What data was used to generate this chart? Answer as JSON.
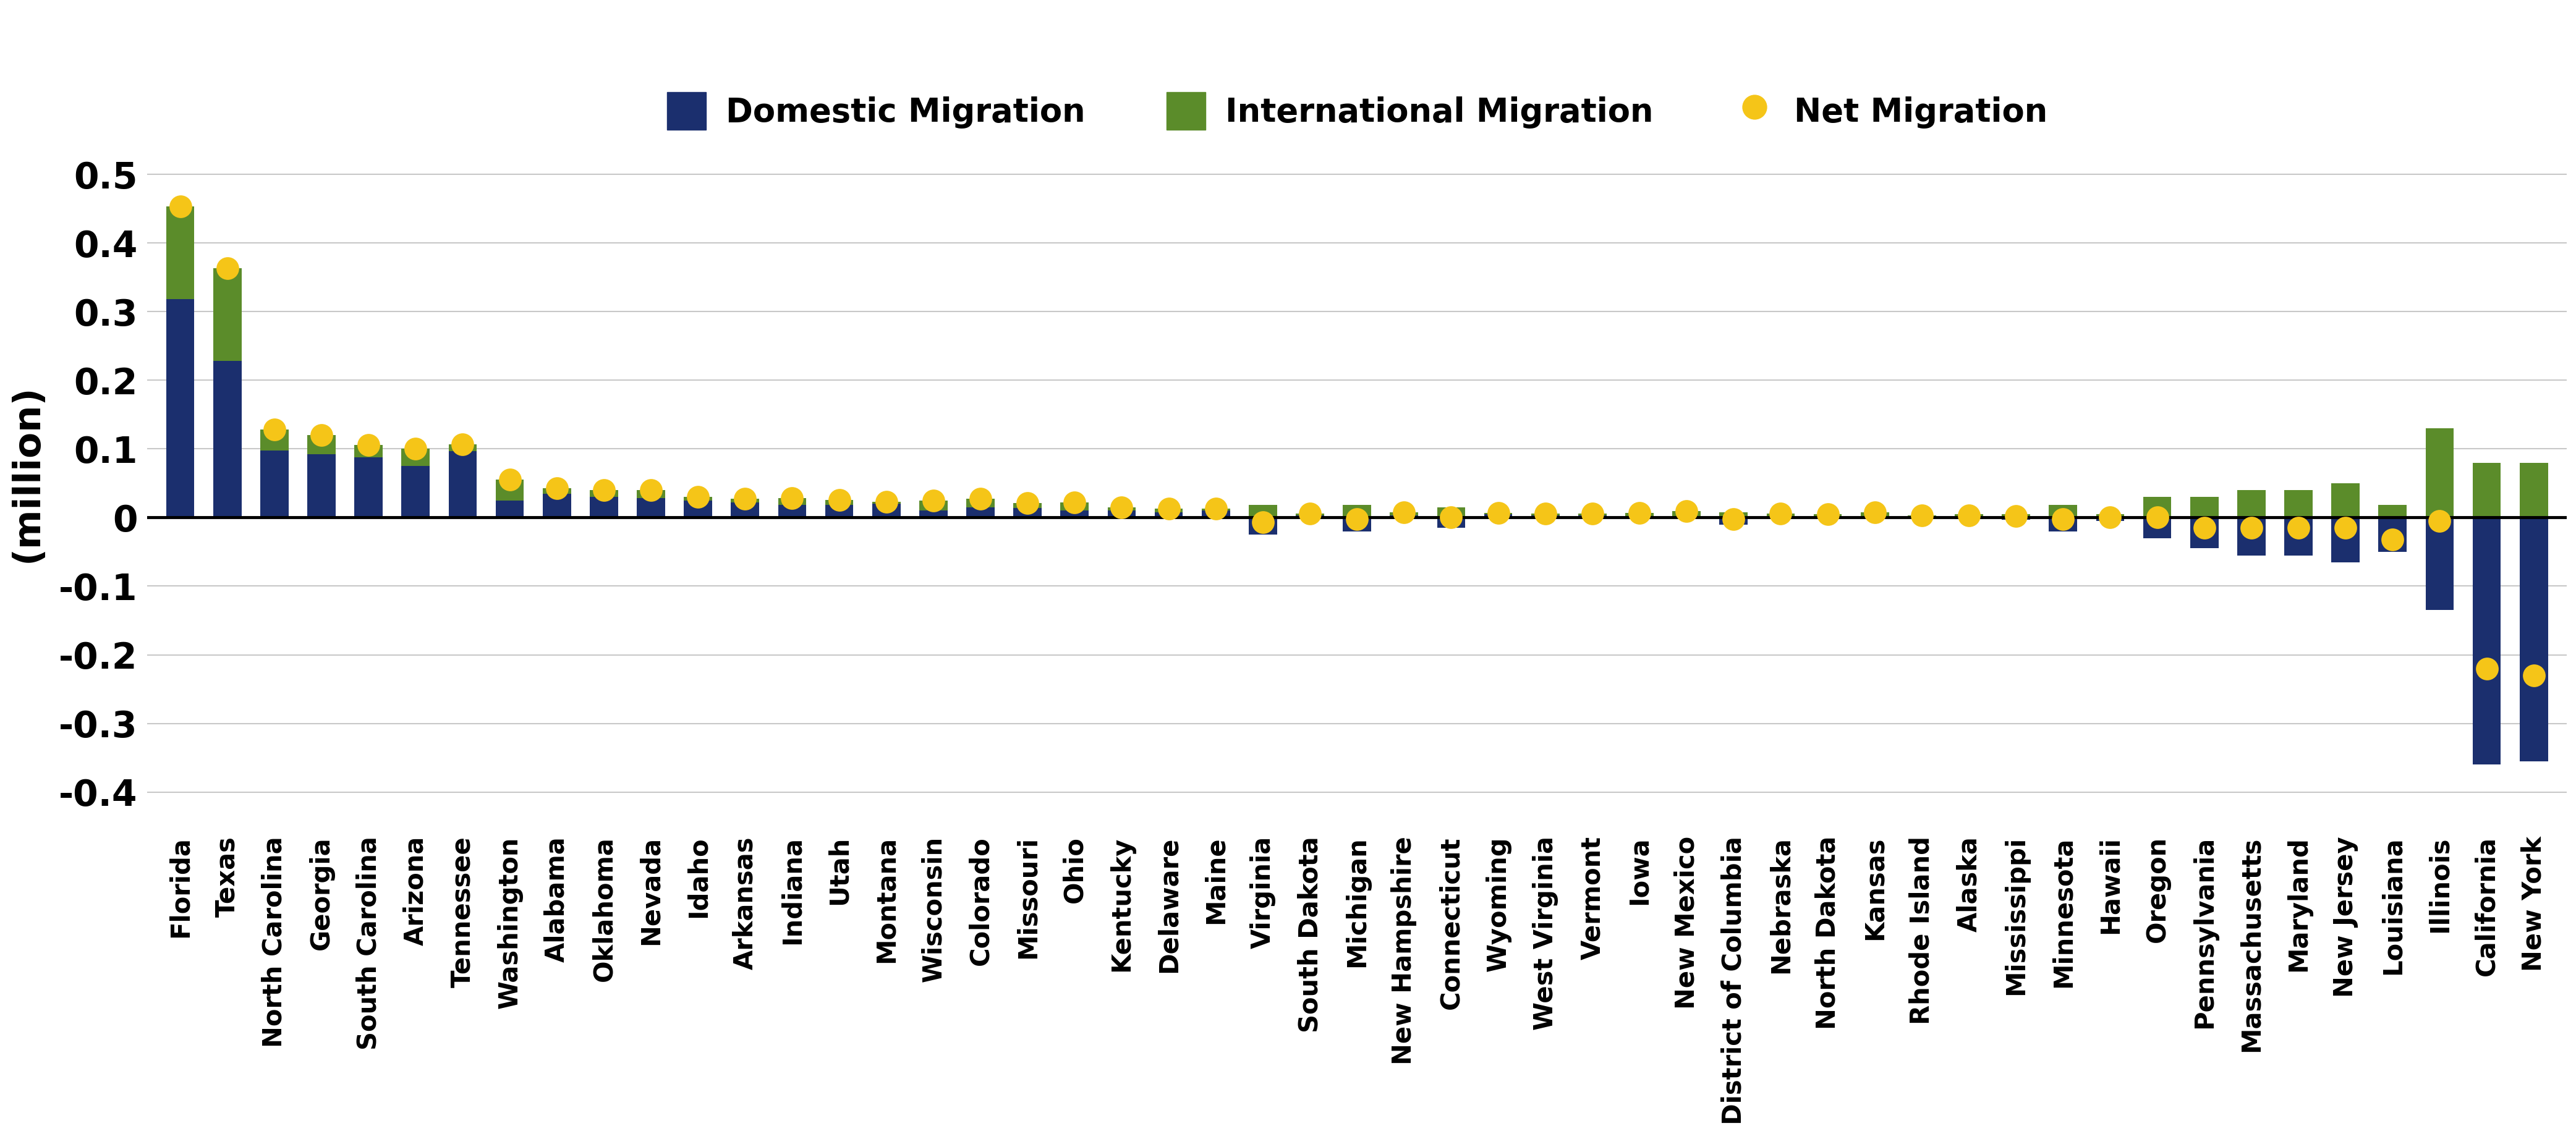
{
  "states": [
    "Florida",
    "Texas",
    "North Carolina",
    "Georgia",
    "South Carolina",
    "Arizona",
    "Tennessee",
    "Washington",
    "Alabama",
    "Oklahoma",
    "Nevada",
    "Idaho",
    "Arkansas",
    "Indiana",
    "Utah",
    "Montana",
    "Wisconsin",
    "Colorado",
    "Missouri",
    "Ohio",
    "Kentucky",
    "Delaware",
    "Maine",
    "Virginia",
    "South Dakota",
    "Michigan",
    "New Hampshire",
    "Connecticut",
    "Wyoming",
    "West Virginia",
    "Vermont",
    "Iowa",
    "New Mexico",
    "District of Columbia",
    "Nebraska",
    "North Dakota",
    "Kansas",
    "Rhode Island",
    "Alaska",
    "Mississippi",
    "Minnesota",
    "Hawaii",
    "Oregon",
    "Pennsylvania",
    "Massachusetts",
    "Maryland",
    "New Jersey",
    "Louisiana",
    "Illinois",
    "California",
    "New York"
  ],
  "domestic": [
    0.318,
    0.228,
    0.098,
    0.092,
    0.088,
    0.075,
    0.097,
    0.025,
    0.035,
    0.03,
    0.028,
    0.025,
    0.022,
    0.018,
    0.018,
    0.02,
    0.01,
    0.015,
    0.014,
    0.01,
    0.01,
    0.008,
    0.01,
    -0.025,
    0.003,
    -0.02,
    0.003,
    -0.015,
    0.005,
    0.003,
    0.003,
    0.002,
    0.001,
    -0.01,
    0.001,
    0.002,
    0.0,
    0.0,
    -0.002,
    -0.003,
    -0.02,
    -0.005,
    -0.03,
    -0.045,
    -0.055,
    -0.055,
    -0.065,
    -0.05,
    -0.135,
    -0.36,
    -0.355
  ],
  "international": [
    0.135,
    0.135,
    0.03,
    0.028,
    0.018,
    0.025,
    0.01,
    0.03,
    0.008,
    0.01,
    0.012,
    0.005,
    0.005,
    0.01,
    0.008,
    0.003,
    0.015,
    0.012,
    0.007,
    0.012,
    0.005,
    0.005,
    0.003,
    0.018,
    0.003,
    0.018,
    0.005,
    0.015,
    0.002,
    0.003,
    0.003,
    0.005,
    0.008,
    0.008,
    0.005,
    0.003,
    0.008,
    0.003,
    0.005,
    0.005,
    0.018,
    0.005,
    0.03,
    0.03,
    0.04,
    0.04,
    0.05,
    0.018,
    0.13,
    0.08,
    0.08
  ],
  "net": [
    0.453,
    0.363,
    0.128,
    0.12,
    0.106,
    0.1,
    0.107,
    0.055,
    0.043,
    0.04,
    0.04,
    0.03,
    0.027,
    0.028,
    0.026,
    0.023,
    0.025,
    0.027,
    0.021,
    0.022,
    0.015,
    0.013,
    0.013,
    -0.007,
    0.006,
    -0.002,
    0.008,
    0.0,
    0.007,
    0.006,
    0.006,
    0.007,
    0.009,
    -0.002,
    0.006,
    0.005,
    0.008,
    0.003,
    0.003,
    0.002,
    -0.002,
    0.0,
    0.0,
    -0.015,
    -0.015,
    -0.015,
    -0.015,
    -0.032,
    -0.005,
    -0.22,
    -0.23
  ],
  "domestic_color": "#1B2F6E",
  "international_color": "#5B8C2A",
  "net_color": "#F5C518",
  "background_color": "#FFFFFF",
  "ylabel": "(million)",
  "ylim": [
    -0.45,
    0.58
  ],
  "yticks": [
    -0.4,
    -0.3,
    -0.2,
    -0.1,
    0.0,
    0.1,
    0.2,
    0.3,
    0.4,
    0.5
  ],
  "ytick_labels": [
    "-0.4",
    "-0.3",
    "-0.2",
    "-0.1",
    "0",
    "0.1",
    "0.2",
    "0.3",
    "0.4",
    "0.5"
  ],
  "legend_labels": [
    "Domestic Migration",
    "International Migration",
    "Net Migration"
  ],
  "grid_color": "#C8C8C8"
}
